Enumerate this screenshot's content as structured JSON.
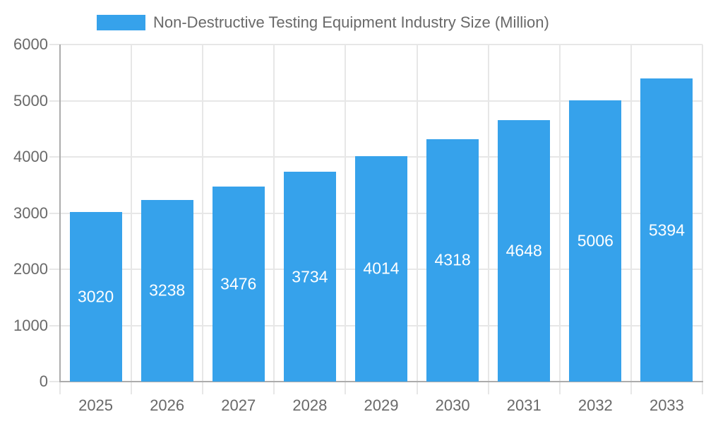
{
  "legend": {
    "label": "Non-Destructive Testing Equipment Industry Size (Million)",
    "swatch_icon": "legend-swatch"
  },
  "chart_data": {
    "type": "bar",
    "title": "Non-Destructive Testing Equipment Industry Size (Million)",
    "categories": [
      "2025",
      "2026",
      "2027",
      "2028",
      "2029",
      "2030",
      "2031",
      "2032",
      "2033"
    ],
    "series": [
      {
        "name": "Non-Destructive Testing Equipment Industry Size (Million)",
        "values": [
          3020,
          3238,
          3476,
          3734,
          4014,
          4318,
          4648,
          5006,
          5394
        ]
      }
    ],
    "value_labels": [
      "3020",
      "3238",
      "3476",
      "3734",
      "4014",
      "4318",
      "4648",
      "5006",
      "5394"
    ],
    "xlabel": "",
    "ylabel": "",
    "ylim": [
      0,
      6000
    ],
    "yticks": [
      0,
      1000,
      2000,
      3000,
      4000,
      5000,
      6000
    ],
    "ytick_labels": [
      "0",
      "1000",
      "2000",
      "3000",
      "4000",
      "5000",
      "6000"
    ],
    "grid": true,
    "legend_position": "top",
    "bar_label_position": "inside-center",
    "colors": {
      "bar": "#36A2EB",
      "bar_label": "#FFFFFF",
      "grid": "#E7E7E7",
      "axis": "#ACACAC",
      "text": "#696969",
      "background": "#FFFFFF"
    }
  }
}
